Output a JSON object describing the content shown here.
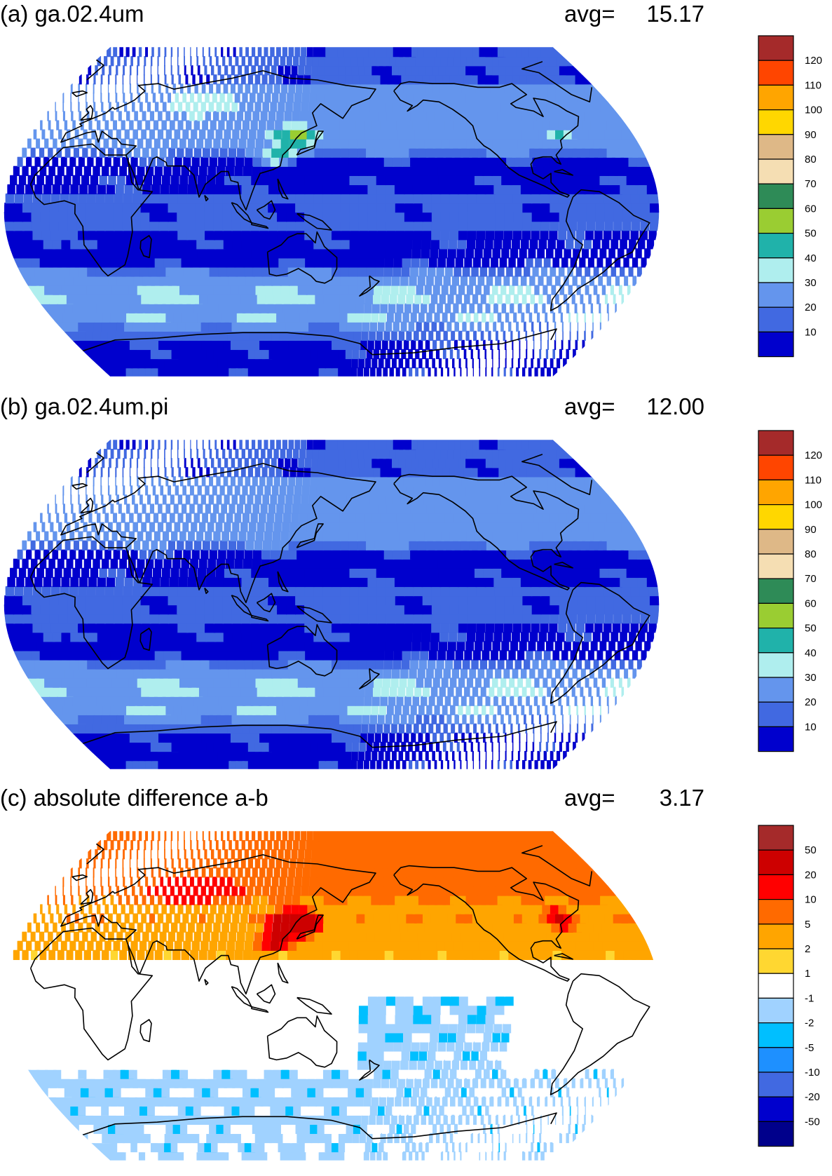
{
  "panels": [
    {
      "id": "a",
      "title": "(a) ga.02.4um",
      "avg_label": "avg=",
      "avg_value": "15.17",
      "colorbar": {
        "labels": [
          "120",
          "110",
          "100",
          "90",
          "80",
          "70",
          "60",
          "50",
          "40",
          "30",
          "20",
          "10"
        ],
        "colors": [
          "#a52a2a",
          "#ff4500",
          "#ffa500",
          "#ffd700",
          "#deb887",
          "#f5deb3",
          "#2e8b57",
          "#9acd32",
          "#20b2aa",
          "#afeeee",
          "#6495ed",
          "#4169e1",
          "#0000cd"
        ]
      }
    },
    {
      "id": "b",
      "title": "(b) ga.02.4um.pi",
      "avg_label": "avg=",
      "avg_value": "12.00",
      "colorbar": {
        "labels": [
          "120",
          "110",
          "100",
          "90",
          "80",
          "70",
          "60",
          "50",
          "40",
          "30",
          "20",
          "10"
        ],
        "colors": [
          "#a52a2a",
          "#ff4500",
          "#ffa500",
          "#ffd700",
          "#deb887",
          "#f5deb3",
          "#2e8b57",
          "#9acd32",
          "#20b2aa",
          "#afeeee",
          "#6495ed",
          "#4169e1",
          "#0000cd"
        ]
      }
    },
    {
      "id": "c",
      "title": "(c) absolute difference a-b",
      "avg_label": "avg=",
      "avg_value": "3.17",
      "colorbar": {
        "labels": [
          "50",
          "20",
          "10",
          "5",
          "2",
          "1",
          "-1",
          "-2",
          "-5",
          "-10",
          "-20",
          "-50"
        ],
        "colors": [
          "#a52a2a",
          "#cd0000",
          "#ff0000",
          "#ff6a00",
          "#ffa500",
          "#ffd731",
          "#ffffff",
          "#a0d2ff",
          "#00bfff",
          "#1e90ff",
          "#4169e1",
          "#0000cd",
          "#00008b"
        ]
      }
    }
  ]
}
